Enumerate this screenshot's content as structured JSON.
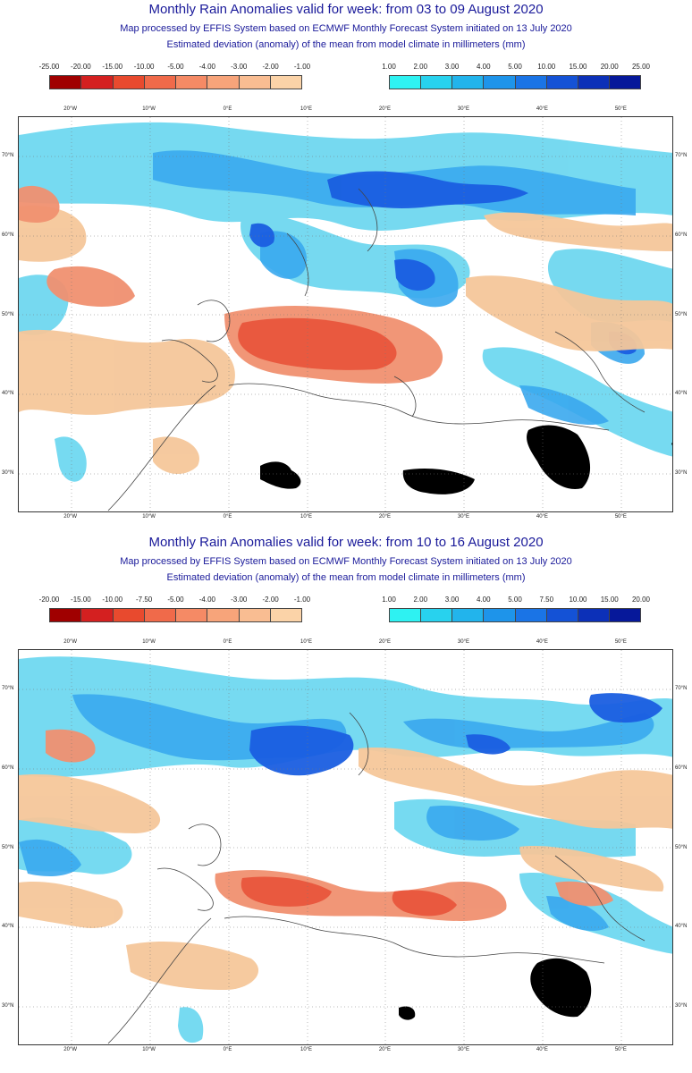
{
  "panels": [
    {
      "title": "Monthly Rain Anomalies valid for week: from 03 to 09 August 2020",
      "subtitle1": "Map processed by EFFIS System based on ECMWF Monthly Forecast System initiated on 13 July 2020",
      "subtitle2": "Estimated deviation (anomaly) of the mean from model climate in millimeters (mm)",
      "legend_negative": {
        "labels": [
          "-25.00",
          "-20.00",
          "-15.00",
          "-10.00",
          "-5.00",
          "-4.00",
          "-3.00",
          "-2.00",
          "-1.00"
        ],
        "colors": [
          "#a00000",
          "#d42020",
          "#e84a2e",
          "#f06a4a",
          "#f58a65",
          "#f7a47a",
          "#f9bd92",
          "#fbd3a8"
        ]
      },
      "legend_positive": {
        "labels": [
          "1.00",
          "2.00",
          "3.00",
          "4.00",
          "5.00",
          "10.00",
          "15.00",
          "20.00",
          "25.00"
        ],
        "colors": [
          "#2ef2f2",
          "#28d2ee",
          "#22b4ec",
          "#1e94ea",
          "#1a74e6",
          "#1452d6",
          "#0c30b8",
          "#06189a"
        ]
      }
    },
    {
      "title": "Monthly Rain Anomalies valid for week: from 10 to 16 August 2020",
      "subtitle1": "Map processed by EFFIS System based on ECMWF Monthly Forecast System initiated on 13 July 2020",
      "subtitle2": "Estimated deviation (anomaly) of the mean from model climate in millimeters (mm)",
      "legend_negative": {
        "labels": [
          "-20.00",
          "-15.00",
          "-10.00",
          "-7.50",
          "-5.00",
          "-4.00",
          "-3.00",
          "-2.00",
          "-1.00"
        ],
        "colors": [
          "#a00000",
          "#d42020",
          "#e84a2e",
          "#f06a4a",
          "#f58a65",
          "#f7a47a",
          "#f9bd92",
          "#fbd3a8"
        ]
      },
      "legend_positive": {
        "labels": [
          "1.00",
          "2.00",
          "3.00",
          "4.00",
          "5.00",
          "7.50",
          "10.00",
          "15.00",
          "20.00"
        ],
        "colors": [
          "#2ef2f2",
          "#28d2ee",
          "#22b4ec",
          "#1e94ea",
          "#1a74e6",
          "#1452d6",
          "#0c30b8",
          "#06189a"
        ]
      }
    }
  ],
  "axes": {
    "lon_labels": [
      "20°W",
      "10°W",
      "0°E",
      "10°E",
      "20°E",
      "30°E",
      "40°E",
      "50°E"
    ],
    "lat_labels": [
      "70°N",
      "60°N",
      "50°N",
      "40°N",
      "30°N"
    ]
  },
  "colors": {
    "title_text": "#1a1a9a",
    "light_blue": "#6fd8f0",
    "mid_blue": "#3aa8ee",
    "deep_blue": "#1a5ee0",
    "light_orange": "#f5c79a",
    "mid_orange": "#f09070",
    "red": "#e8553c",
    "land_line": "#444444",
    "grid": "#777777"
  }
}
